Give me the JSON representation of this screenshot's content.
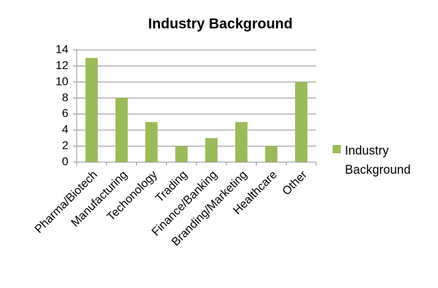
{
  "chart_data": {
    "type": "bar",
    "title": "Industry Background",
    "categories": [
      "Pharma/Biotech",
      "Manufacturing",
      "Techonology",
      "Trading",
      "Finance/Banking",
      "Branding/Marketing",
      "Healthcare",
      "Other"
    ],
    "series": [
      {
        "name": "Industry Background",
        "color": "#9bbb59",
        "values": [
          13,
          8,
          5,
          2,
          3,
          5,
          2,
          10
        ]
      }
    ],
    "ylim": [
      0,
      14
    ],
    "yticks": [
      0,
      2,
      4,
      6,
      8,
      10,
      12,
      14
    ],
    "grid": true,
    "legend": "right"
  }
}
